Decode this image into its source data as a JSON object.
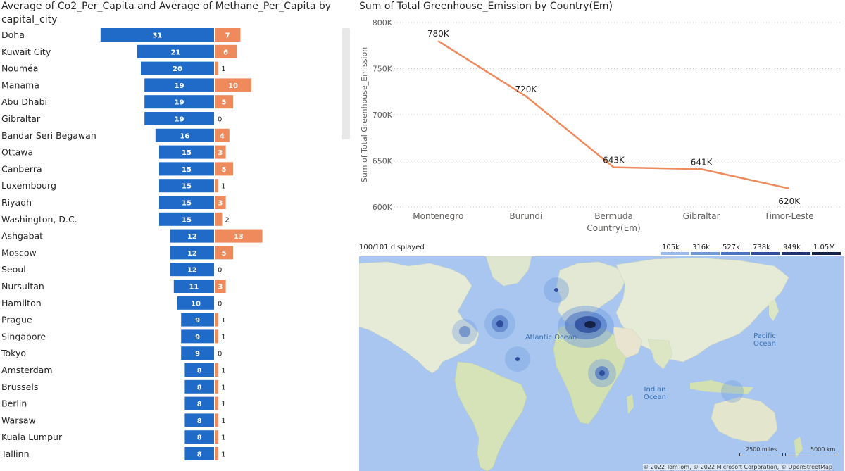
{
  "left_chart": {
    "title": "Average of Co2_Per_Capita and Average of Methane_Per_Capita by capital_city"
  },
  "right_chart": {
    "title": "Sum of Total Greenhouse_Emission by Country(Em)"
  },
  "map": {
    "displayed": "100/101 displayed",
    "legend": [
      "105k",
      "316k",
      "527k",
      "738k",
      "949k",
      "1.05M"
    ],
    "legend_colors": [
      "#9dbbe9",
      "#7097d6",
      "#4a73c2",
      "#2f4f9e",
      "#1f3270",
      "#152045"
    ],
    "oceans": {
      "atlantic": "Atlantic Ocean",
      "pacific": "Pacific Ocean",
      "indian": "Indian Ocean"
    },
    "scale_miles": "2500 miles",
    "scale_km": "5000 km",
    "copyright": "© 2022 TomTom, © 2022 Microsoft Corporation, © OpenStreetMap"
  },
  "chart_data": [
    {
      "type": "bar",
      "orientation": "horizontal-diverging",
      "title": "Average of Co2_Per_Capita and Average of Methane_Per_Capita by capital_city",
      "categories": [
        "Doha",
        "Kuwait City",
        "Nouméa",
        "Manama",
        "Abu Dhabi",
        "Gibraltar",
        "Bandar Seri Begawan",
        "Ottawa",
        "Canberra",
        "Luxembourg",
        "Riyadh",
        "Washington, D.C.",
        "Ashgabat",
        "Moscow",
        "Seoul",
        "Nursultan",
        "Hamilton",
        "Prague",
        "Singapore",
        "Tokyo",
        "Amsterdam",
        "Brussels",
        "Berlin",
        "Warsaw",
        "Kuala Lumpur",
        "Tallinn"
      ],
      "series": [
        {
          "values": [
            31,
            21,
            20,
            19,
            19,
            19,
            16,
            15,
            15,
            15,
            15,
            15,
            12,
            12,
            12,
            11,
            10,
            9,
            9,
            9,
            8,
            8,
            8,
            8,
            8,
            8
          ],
          "color": "#1f6bc7"
        },
        {
          "values": [
            7,
            6,
            1,
            10,
            5,
            0,
            4,
            3,
            5,
            1,
            3,
            2,
            13,
            5,
            0,
            3,
            0,
            1,
            1,
            0,
            1,
            1,
            1,
            1,
            1,
            1
          ],
          "color": "#ee8a5c"
        }
      ]
    },
    {
      "type": "line",
      "title": "Sum of Total Greenhouse_Emission by Country(Em)",
      "xlabel": "Country(Em)",
      "ylabel": "Sum of Total Greenhouse_Emission",
      "categories": [
        "Montenegro",
        "Burundi",
        "Bermuda",
        "Gibraltar",
        "Timor-Leste"
      ],
      "values": [
        780000,
        720000,
        643000,
        641000,
        620000
      ],
      "data_labels": [
        "780K",
        "720K",
        "643K",
        "641K",
        "620K"
      ],
      "ylim": [
        600000,
        800000
      ],
      "yticks": [
        "600K",
        "650K",
        "700K",
        "750K",
        "800K"
      ],
      "grid": true,
      "color": "#ee8a5c"
    }
  ]
}
